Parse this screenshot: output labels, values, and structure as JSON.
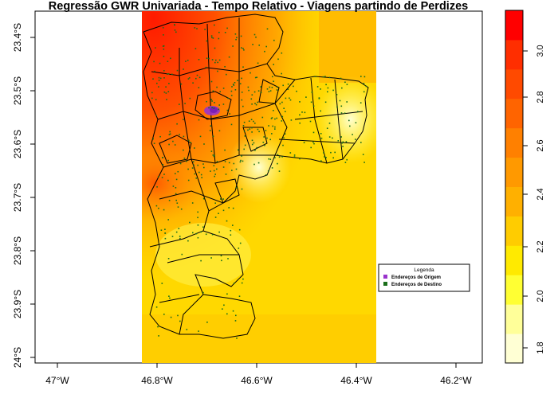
{
  "map": {
    "title": "Regressão GWR Univariada - Tempo Relativo - Viagens partindo de Perdizes",
    "x_ticks": [
      "47°W",
      "46.8°W",
      "46.6°W",
      "46.4°W",
      "46.2°W"
    ],
    "y_ticks": [
      "23.4°S",
      "23.5°S",
      "23.6°S",
      "23.7°S",
      "23.8°S",
      "23.9°S",
      "24°S"
    ],
    "legend": {
      "title": "Legenda",
      "items": [
        {
          "label": "Endereços de Origem",
          "color": "#9933cc"
        },
        {
          "label": "Endereços de Destino",
          "color": "#1a6e1a"
        }
      ]
    },
    "colorbar": {
      "ticks": [
        "1.8",
        "2.0",
        "2.2",
        "2.4",
        "2.6",
        "2.8",
        "3.0"
      ],
      "colors": [
        "#ffffd4",
        "#ffff99",
        "#ffff33",
        "#ffea00",
        "#ffcc00",
        "#ffb000",
        "#ff9900",
        "#ff8000",
        "#ff6400",
        "#ff4a00",
        "#ff2e00",
        "#ff0000"
      ]
    }
  }
}
